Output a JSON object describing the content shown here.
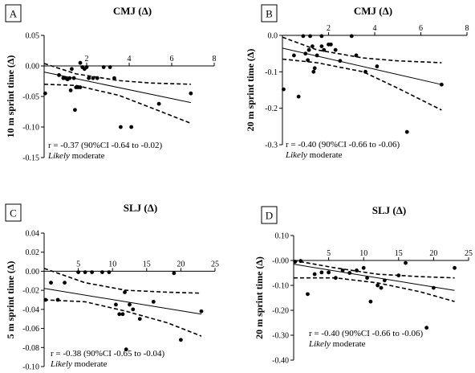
{
  "chart_data": [
    {
      "type": "scatter",
      "panel_label": "A",
      "title": "CMJ (Δ)",
      "xlabel": "",
      "ylabel": "10 m sprint time (Δ)",
      "xlim": [
        0,
        8
      ],
      "ylim": [
        -0.15,
        0.05
      ],
      "xticks": [
        2,
        4,
        6,
        8
      ],
      "yticks": [
        0.05,
        0.0,
        -0.05,
        -0.1,
        -0.15
      ],
      "ytick_labels": [
        "0.05",
        "0.00",
        "-0.05",
        "-0.10",
        "-0.15"
      ],
      "x_axis_position": "top",
      "points": [
        [
          0.05,
          -0.045
        ],
        [
          0.7,
          -0.015
        ],
        [
          0.9,
          -0.02
        ],
        [
          1.0,
          -0.02
        ],
        [
          1.1,
          -0.022
        ],
        [
          1.2,
          -0.02
        ],
        [
          1.25,
          -0.04
        ],
        [
          1.3,
          -0.005
        ],
        [
          1.4,
          -0.02
        ],
        [
          1.45,
          -0.072
        ],
        [
          1.5,
          -0.035
        ],
        [
          1.6,
          -0.035
        ],
        [
          1.7,
          -0.035
        ],
        [
          1.7,
          0.005
        ],
        [
          1.8,
          -0.002
        ],
        [
          1.9,
          -0.005
        ],
        [
          2.0,
          -0.002
        ],
        [
          2.1,
          -0.02
        ],
        [
          2.3,
          -0.02
        ],
        [
          2.5,
          -0.02
        ],
        [
          2.8,
          -0.002
        ],
        [
          3.1,
          -0.002
        ],
        [
          3.3,
          -0.02
        ],
        [
          3.6,
          -0.1
        ],
        [
          4.1,
          -0.1
        ],
        [
          5.4,
          -0.062
        ],
        [
          6.9,
          -0.045
        ]
      ],
      "fit_line": [
        [
          0,
          -0.01
        ],
        [
          6.9,
          -0.06
        ]
      ],
      "ci_upper": [
        [
          0,
          0.004
        ],
        [
          1.5,
          -0.013
        ],
        [
          3.5,
          -0.024
        ],
        [
          5,
          -0.028
        ],
        [
          6.9,
          -0.03
        ]
      ],
      "ci_lower": [
        [
          0,
          -0.03
        ],
        [
          1.5,
          -0.032
        ],
        [
          3.5,
          -0.048
        ],
        [
          5,
          -0.068
        ],
        [
          6.9,
          -0.094
        ]
      ],
      "annotation": "r = -0.37 (90%CI -0.64 to -0.02)",
      "annotation_italic": "Likely",
      "annotation_rest": " moderate"
    },
    {
      "type": "scatter",
      "panel_label": "B",
      "title": "CMJ (Δ)",
      "xlabel": "",
      "ylabel": "20 m sprint time (Δ)",
      "xlim": [
        0,
        8
      ],
      "ylim": [
        -0.3,
        0.0
      ],
      "xticks": [
        2,
        4,
        6,
        8
      ],
      "yticks": [
        0.0,
        -0.1,
        -0.2,
        -0.3
      ],
      "ytick_labels": [
        "0.0",
        "-0.1",
        "-0.2",
        "-0.3"
      ],
      "x_axis_position": "top",
      "points": [
        [
          0.05,
          -0.148
        ],
        [
          0.5,
          -0.055
        ],
        [
          0.7,
          -0.168
        ],
        [
          0.9,
          -0.002
        ],
        [
          1.0,
          -0.05
        ],
        [
          1.1,
          -0.068
        ],
        [
          1.15,
          -0.04
        ],
        [
          1.2,
          -0.002
        ],
        [
          1.3,
          -0.03
        ],
        [
          1.35,
          -0.1
        ],
        [
          1.4,
          -0.09
        ],
        [
          1.5,
          -0.055
        ],
        [
          1.7,
          -0.002
        ],
        [
          1.7,
          -0.03
        ],
        [
          1.8,
          -0.04
        ],
        [
          2.0,
          -0.025
        ],
        [
          2.1,
          -0.025
        ],
        [
          2.3,
          -0.04
        ],
        [
          2.5,
          -0.07
        ],
        [
          3.0,
          -0.002
        ],
        [
          3.2,
          -0.055
        ],
        [
          3.6,
          -0.1
        ],
        [
          4.1,
          -0.085
        ],
        [
          5.4,
          -0.265
        ],
        [
          6.9,
          -0.135
        ]
      ],
      "fit_line": [
        [
          0,
          -0.035
        ],
        [
          6.9,
          -0.135
        ]
      ],
      "ci_upper": [
        [
          0,
          -0.005
        ],
        [
          1.5,
          -0.04
        ],
        [
          3.5,
          -0.062
        ],
        [
          5,
          -0.07
        ],
        [
          6.9,
          -0.075
        ]
      ],
      "ci_lower": [
        [
          0,
          -0.065
        ],
        [
          1.5,
          -0.075
        ],
        [
          3.5,
          -0.1
        ],
        [
          5,
          -0.145
        ],
        [
          6.9,
          -0.205
        ]
      ],
      "annotation": "r = -0.40 (90%CI -0.66 to -0.06)",
      "annotation_italic": "Likely",
      "annotation_rest": " moderate"
    },
    {
      "type": "scatter",
      "panel_label": "C",
      "title": "SLJ (Δ)",
      "xlabel": "",
      "ylabel": "5 m sprint time (Δ)",
      "xlim": [
        0,
        25
      ],
      "ylim": [
        -0.1,
        0.04
      ],
      "xticks": [
        5,
        10,
        15,
        20,
        25
      ],
      "yticks": [
        0.04,
        0.02,
        0.0,
        -0.02,
        -0.04,
        -0.06,
        -0.08,
        -0.1
      ],
      "ytick_labels": [
        "0.04",
        "0.02",
        "0.00",
        "-0.02",
        "-0.04",
        "-0.06",
        "-0.08",
        "-0.10"
      ],
      "x_axis_position": "top",
      "points": [
        [
          0.2,
          -0.03
        ],
        [
          1.0,
          -0.012
        ],
        [
          2.0,
          -0.03
        ],
        [
          3.0,
          -0.012
        ],
        [
          5.0,
          -0.001
        ],
        [
          6.0,
          -0.001
        ],
        [
          7.0,
          -0.001
        ],
        [
          8.5,
          -0.001
        ],
        [
          9.5,
          -0.001
        ],
        [
          10.5,
          -0.035
        ],
        [
          11.0,
          -0.045
        ],
        [
          11.5,
          -0.045
        ],
        [
          11.8,
          -0.022
        ],
        [
          12.0,
          -0.082
        ],
        [
          12.5,
          -0.035
        ],
        [
          13.0,
          -0.04
        ],
        [
          14.0,
          -0.05
        ],
        [
          16.0,
          -0.032
        ],
        [
          19.0,
          -0.002
        ],
        [
          20.0,
          -0.072
        ],
        [
          23.0,
          -0.042
        ]
      ],
      "fit_line": [
        [
          0,
          -0.018
        ],
        [
          23,
          -0.045
        ]
      ],
      "ci_upper": [
        [
          0,
          0.003
        ],
        [
          6,
          -0.012
        ],
        [
          12,
          -0.02
        ],
        [
          18,
          -0.022
        ],
        [
          23,
          -0.023
        ]
      ],
      "ci_lower": [
        [
          0,
          -0.03
        ],
        [
          6,
          -0.032
        ],
        [
          12,
          -0.042
        ],
        [
          18,
          -0.054
        ],
        [
          23,
          -0.068
        ]
      ],
      "annotation": "r = -0.38 (90%CI -0.65 to -0.04)",
      "annotation_italic": "Likely",
      "annotation_rest": " moderate"
    },
    {
      "type": "scatter",
      "panel_label": "D",
      "title": "SLJ (Δ)",
      "xlabel": "",
      "ylabel": "20 m sprint time (Δ)",
      "xlim": [
        0,
        25
      ],
      "ylim": [
        -0.4,
        0.1
      ],
      "xticks": [
        5,
        10,
        15,
        20,
        25
      ],
      "yticks": [
        0.1,
        0.0,
        -0.1,
        -0.2,
        -0.3,
        -0.4
      ],
      "ytick_labels": [
        "0.10",
        "-0.00",
        "-0.10",
        "-0.20",
        "-0.30",
        "-0.40"
      ],
      "x_axis_position": "top",
      "points": [
        [
          0.2,
          -0.005
        ],
        [
          1.0,
          -0.002
        ],
        [
          2.0,
          -0.135
        ],
        [
          3.0,
          -0.055
        ],
        [
          4.0,
          -0.048
        ],
        [
          5.0,
          -0.048
        ],
        [
          6.0,
          -0.07
        ],
        [
          7.0,
          -0.04
        ],
        [
          8.0,
          -0.05
        ],
        [
          9.0,
          -0.04
        ],
        [
          10.0,
          -0.03
        ],
        [
          10.5,
          -0.07
        ],
        [
          11.0,
          -0.165
        ],
        [
          12.0,
          -0.1
        ],
        [
          12.5,
          -0.11
        ],
        [
          13.0,
          -0.08
        ],
        [
          15.0,
          -0.06
        ],
        [
          16.0,
          -0.01
        ],
        [
          19.0,
          -0.27
        ],
        [
          20.0,
          -0.11
        ],
        [
          23.0,
          -0.03
        ]
      ],
      "fit_line": [
        [
          0,
          -0.015
        ],
        [
          23,
          -0.12
        ]
      ],
      "ci_upper": [
        [
          0,
          0.0
        ],
        [
          6,
          -0.03
        ],
        [
          12,
          -0.055
        ],
        [
          18,
          -0.065
        ],
        [
          23,
          -0.07
        ]
      ],
      "ci_lower": [
        [
          0,
          -0.07
        ],
        [
          6,
          -0.07
        ],
        [
          12,
          -0.09
        ],
        [
          18,
          -0.125
        ],
        [
          23,
          -0.165
        ]
      ],
      "annotation": "r = -0.40 (90%CI -0.66 to -0.06)",
      "annotation_italic": "Likely",
      "annotation_rest": " moderate"
    }
  ]
}
